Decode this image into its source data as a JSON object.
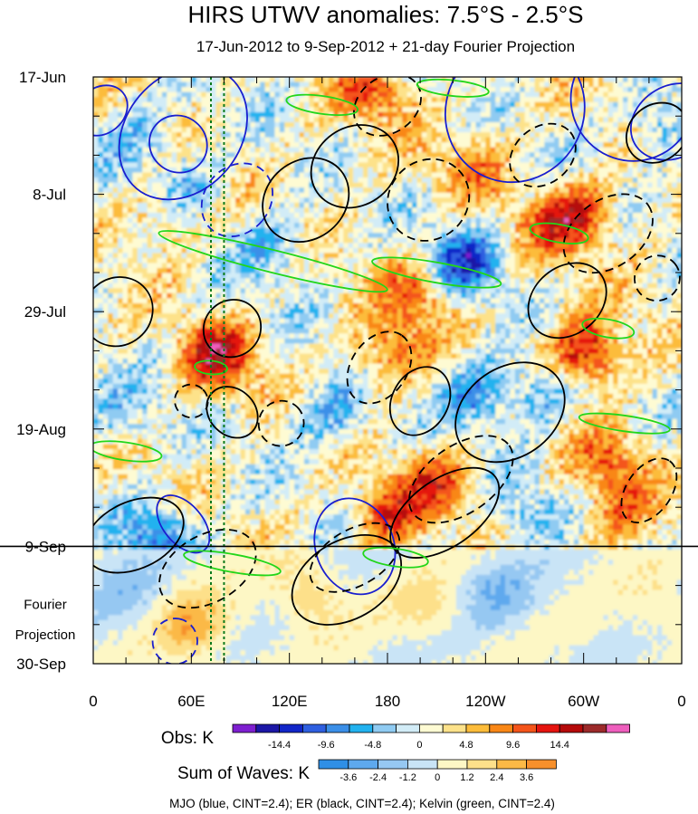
{
  "chart_data": {
    "type": "heatmap",
    "title": "HIRS UTWV anomalies: 7.5°S - 2.5°S",
    "subtitle": "17-Jun-2012 to 9-Sep-2012 + 21-day Fourier Projection",
    "xlabel": "",
    "ylabel": "",
    "x_ticks": [
      "0",
      "60E",
      "120E",
      "180",
      "120W",
      "60W",
      "0"
    ],
    "x_range_deg_east": [
      0,
      360
    ],
    "x_tick_values_deg_east": [
      0,
      60,
      120,
      180,
      240,
      300,
      360
    ],
    "y_ticks": [
      "17-Jun",
      "8-Jul",
      "29-Jul",
      "19-Aug",
      "9-Sep",
      "30-Sep"
    ],
    "y_tick_days": [
      0,
      21,
      42,
      63,
      84,
      105
    ],
    "y_range_days": [
      0,
      105
    ],
    "observation_end_label": "9-Sep",
    "observation_end_day": 84,
    "projection_label": [
      "Fourier",
      "Projection"
    ],
    "reference_lines_deg_east": [
      72,
      80
    ],
    "obs_colorbar": {
      "label": "Obs: K",
      "colors": [
        "#7e1fd0",
        "#1c17a6",
        "#1126c8",
        "#2e5fe0",
        "#3b8fe8",
        "#22b2ef",
        "#8fcbf2",
        "#d2ecf7",
        "#fefbd3",
        "#fde28a",
        "#fcbc3a",
        "#f98716",
        "#f4541a",
        "#e5140f",
        "#b50a0a",
        "#9c2a2a",
        "#ee5ebd"
      ],
      "tick_labels": [
        "-14.4",
        "-9.6",
        "-4.8",
        "0",
        "4.8",
        "9.6",
        "14.4"
      ]
    },
    "waves_colorbar": {
      "label": "Sum of Waves: K",
      "colors": [
        "#2f8fe6",
        "#5ea9ee",
        "#96c8f2",
        "#c9e4f6",
        "#fdf7c5",
        "#fde08a",
        "#fbb946",
        "#f7902c"
      ],
      "tick_labels": [
        "-3.6",
        "-2.4",
        "-1.2",
        "0",
        "1.2",
        "2.4",
        "3.6"
      ]
    },
    "legend_text": "MJO (blue, CINT=2.4); ER (black, CINT=2.4); Kelvin (green, CINT=2.4)",
    "field_anomalies": [
      {
        "lon": 25,
        "day": 10,
        "value": -6
      },
      {
        "lon": 55,
        "day": 20,
        "value": -8
      },
      {
        "lon": 170,
        "day": 2,
        "value": 9
      },
      {
        "lon": 45,
        "day": 24,
        "value": 7
      },
      {
        "lon": 225,
        "day": 33,
        "value": -12
      },
      {
        "lon": 195,
        "day": 38,
        "value": 8
      },
      {
        "lon": 75,
        "day": 50,
        "value": 14
      },
      {
        "lon": 300,
        "day": 49,
        "value": 15
      },
      {
        "lon": 180,
        "day": 49,
        "value": 9
      },
      {
        "lon": 235,
        "day": 56,
        "value": -9
      },
      {
        "lon": 275,
        "day": 56,
        "value": -7
      },
      {
        "lon": 210,
        "day": 72,
        "value": 9
      },
      {
        "lon": 180,
        "day": 78,
        "value": 10
      },
      {
        "lon": 315,
        "day": 68,
        "value": 8
      },
      {
        "lon": 280,
        "day": 26,
        "value": 7
      },
      {
        "lon": 300,
        "day": 24,
        "value": 9
      },
      {
        "lon": 145,
        "day": 60,
        "value": -7
      },
      {
        "lon": 40,
        "day": 82,
        "value": -10
      },
      {
        "lon": 345,
        "day": 8,
        "value": -6
      },
      {
        "lon": 230,
        "day": 15,
        "value": 6
      },
      {
        "lon": 320,
        "day": 78,
        "value": 7
      },
      {
        "lon": 15,
        "day": 60,
        "value": -5
      },
      {
        "lon": 110,
        "day": 30,
        "value": -6
      },
      {
        "lon": 260,
        "day": 78,
        "value": -5
      },
      {
        "lon": 60,
        "day": 98,
        "value": 3
      },
      {
        "lon": 205,
        "day": 95,
        "value": 1.5
      },
      {
        "lon": 130,
        "day": 92,
        "value": 2.5
      },
      {
        "lon": 245,
        "day": 92,
        "value": -2
      },
      {
        "lon": 20,
        "day": 92,
        "value": -1.5
      },
      {
        "lon": 350,
        "day": 95,
        "value": 1.5
      }
    ],
    "mjo_contours": [
      {
        "lon": 258,
        "day": 6,
        "rx": 42,
        "ry": 13,
        "angle": 30,
        "dashed": false
      },
      {
        "lon": 330,
        "day": 4,
        "rx": 38,
        "ry": 11,
        "angle": 40,
        "dashed": false
      },
      {
        "lon": 355,
        "day": 8,
        "rx": 22,
        "ry": 8,
        "angle": 60,
        "dashed": false
      },
      {
        "lon": 55,
        "day": 10,
        "rx": 35,
        "ry": 13,
        "angle": 40,
        "dashed": false
      },
      {
        "lon": 52,
        "day": 12,
        "rx": 18,
        "ry": 5,
        "angle": 40,
        "dashed": false
      },
      {
        "lon": 5,
        "day": 6,
        "rx": 14,
        "ry": 5,
        "angle": 50,
        "dashed": false
      },
      {
        "lon": 88,
        "day": 22,
        "rx": 20,
        "ry": 7,
        "angle": 40,
        "dashed": true
      },
      {
        "lon": 160,
        "day": 84,
        "rx": 30,
        "ry": 7,
        "angle": 70,
        "dashed": false
      },
      {
        "lon": 55,
        "day": 80,
        "rx": 12,
        "ry": 6,
        "angle": -40,
        "dashed": false
      },
      {
        "lon": 50,
        "day": 101,
        "rx": 14,
        "ry": 4,
        "angle": -80,
        "dashed": true
      }
    ],
    "er_contours": [
      {
        "lon": 180,
        "day": 5,
        "rx": 22,
        "ry": 5,
        "angle": -35,
        "dashed": true
      },
      {
        "lon": 160,
        "day": 16,
        "rx": 28,
        "ry": 7,
        "angle": -35,
        "dashed": false
      },
      {
        "lon": 205,
        "day": 22,
        "rx": 26,
        "ry": 7,
        "angle": -45,
        "dashed": true
      },
      {
        "lon": 130,
        "day": 22,
        "rx": 28,
        "ry": 7,
        "angle": -40,
        "dashed": false
      },
      {
        "lon": 275,
        "day": 14,
        "rx": 22,
        "ry": 5,
        "angle": -40,
        "dashed": true
      },
      {
        "lon": 345,
        "day": 10,
        "rx": 20,
        "ry": 5,
        "angle": -40,
        "dashed": false
      },
      {
        "lon": 315,
        "day": 28,
        "rx": 30,
        "ry": 6,
        "angle": -35,
        "dashed": true
      },
      {
        "lon": 290,
        "day": 40,
        "rx": 26,
        "ry": 6,
        "angle": -40,
        "dashed": false
      },
      {
        "lon": 345,
        "day": 36,
        "rx": 14,
        "ry": 4,
        "angle": -40,
        "dashed": true
      },
      {
        "lon": 15,
        "day": 42,
        "rx": 22,
        "ry": 6,
        "angle": -40,
        "dashed": false
      },
      {
        "lon": 85,
        "day": 45,
        "rx": 18,
        "ry": 5,
        "angle": -45,
        "dashed": false
      },
      {
        "lon": 60,
        "day": 58,
        "rx": 10,
        "ry": 3,
        "angle": -45,
        "dashed": true
      },
      {
        "lon": 85,
        "day": 60,
        "rx": 14,
        "ry": 5,
        "angle": -45,
        "dashed": false
      },
      {
        "lon": 115,
        "day": 62,
        "rx": 14,
        "ry": 4,
        "angle": -45,
        "dashed": true
      },
      {
        "lon": 175,
        "day": 52,
        "rx": 24,
        "ry": 5,
        "angle": -55,
        "dashed": true
      },
      {
        "lon": 200,
        "day": 58,
        "rx": 22,
        "ry": 5,
        "angle": -60,
        "dashed": false
      },
      {
        "lon": 255,
        "day": 60,
        "rx": 36,
        "ry": 8,
        "angle": -35,
        "dashed": false
      },
      {
        "lon": 225,
        "day": 72,
        "rx": 36,
        "ry": 6,
        "angle": -35,
        "dashed": true
      },
      {
        "lon": 215,
        "day": 78,
        "rx": 38,
        "ry": 6,
        "angle": -35,
        "dashed": false
      },
      {
        "lon": 340,
        "day": 74,
        "rx": 22,
        "ry": 4,
        "angle": -55,
        "dashed": true
      },
      {
        "lon": 25,
        "day": 82,
        "rx": 32,
        "ry": 6,
        "angle": -25,
        "dashed": false
      },
      {
        "lon": 70,
        "day": 88,
        "rx": 32,
        "ry": 6,
        "angle": -30,
        "dashed": true
      },
      {
        "lon": 155,
        "day": 90,
        "rx": 36,
        "ry": 7,
        "angle": -30,
        "dashed": false
      },
      {
        "lon": 160,
        "day": 86,
        "rx": 30,
        "ry": 5,
        "angle": -30,
        "dashed": true
      }
    ],
    "kelvin_contours": [
      {
        "lon": 140,
        "day": 5,
        "rx": 22,
        "ry": 1.6,
        "angle": 8
      },
      {
        "lon": 220,
        "day": 2,
        "rx": 22,
        "ry": 1.4,
        "angle": 6
      },
      {
        "lon": 110,
        "day": 33,
        "rx": 72,
        "ry": 2.0,
        "angle": 14
      },
      {
        "lon": 210,
        "day": 35,
        "rx": 40,
        "ry": 1.8,
        "angle": 10
      },
      {
        "lon": 285,
        "day": 28,
        "rx": 18,
        "ry": 1.6,
        "angle": 10
      },
      {
        "lon": 315,
        "day": 45,
        "rx": 16,
        "ry": 1.6,
        "angle": 10
      },
      {
        "lon": 72,
        "day": 52,
        "rx": 10,
        "ry": 1.2,
        "angle": 5
      },
      {
        "lon": 325,
        "day": 62,
        "rx": 28,
        "ry": 1.4,
        "angle": 8
      },
      {
        "lon": 20,
        "day": 67,
        "rx": 22,
        "ry": 1.6,
        "angle": 8
      },
      {
        "lon": 85,
        "day": 87,
        "rx": 30,
        "ry": 1.6,
        "angle": 10
      },
      {
        "lon": 185,
        "day": 86,
        "rx": 20,
        "ry": 1.6,
        "angle": 8
      }
    ]
  }
}
